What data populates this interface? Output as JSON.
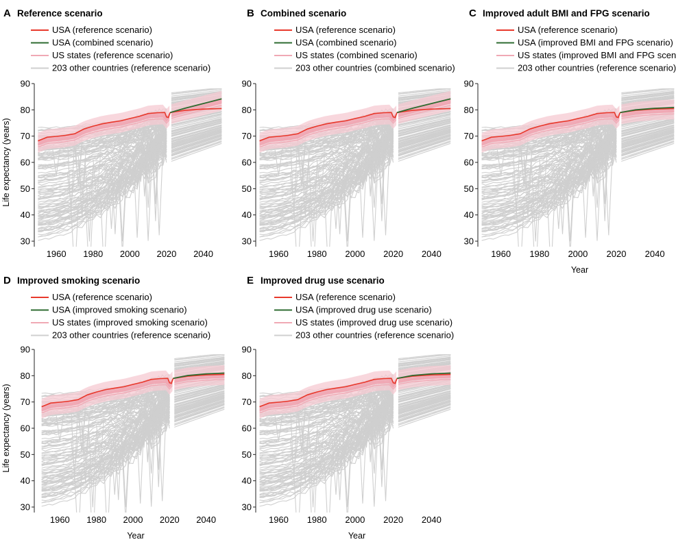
{
  "figure": {
    "y_axis_label": "Life expectancy (years)",
    "x_axis_label": "Year",
    "colors": {
      "usa_reference": "#e8382b",
      "usa_scenario": "#2e6b30",
      "us_states": "#f0a8b4",
      "us_states_band": "#f6c9d1",
      "other_countries": "#cfcfcf"
    }
  },
  "chart_data": [
    {
      "type": "line",
      "letter": "A",
      "title": "Reference scenario",
      "legend": [
        "USA (reference scenario)",
        "USA (combined scenario)",
        "US states (reference scenario)",
        "203 other countries (reference scenario)"
      ],
      "xlabel": "",
      "ylabel": "Life expectancy (years)",
      "xlim": [
        1948,
        2051
      ],
      "ylim": [
        28,
        90
      ],
      "xticks": [
        1960,
        1980,
        2000,
        2020,
        2040
      ],
      "yticks": [
        30,
        40,
        50,
        60,
        70,
        80,
        90
      ],
      "scenario_end": 84.2,
      "series": [
        {
          "name": "USA (reference scenario)",
          "x": [
            1950,
            1955,
            1960,
            1965,
            1970,
            1975,
            1980,
            1985,
            1990,
            1995,
            2000,
            2005,
            2010,
            2015,
            2019,
            2020,
            2021,
            2022,
            2030,
            2040,
            2050
          ],
          "values": [
            68.2,
            69.6,
            69.9,
            70.3,
            70.9,
            72.7,
            73.8,
            74.7,
            75.3,
            75.8,
            76.7,
            77.5,
            78.6,
            78.9,
            79.0,
            77.3,
            77.1,
            79.0,
            79.8,
            80.3,
            80.5
          ]
        },
        {
          "name": "USA (combined scenario)",
          "x": [
            2022,
            2030,
            2040,
            2050
          ],
          "values": [
            79.0,
            80.6,
            82.4,
            84.2
          ]
        }
      ]
    },
    {
      "type": "line",
      "letter": "B",
      "title": "Combined scenario",
      "legend": [
        "USA (reference scenario)",
        "USA (combined scenario)",
        "US states (combined scenario)",
        "203 other countries (combined scenario)"
      ],
      "xlabel": "",
      "ylabel": "",
      "xlim": [
        1948,
        2051
      ],
      "ylim": [
        28,
        90
      ],
      "xticks": [
        1960,
        1980,
        2000,
        2020,
        2040
      ],
      "yticks": [
        30,
        40,
        50,
        60,
        70,
        80,
        90
      ],
      "scenario_end": 84.2,
      "series": [
        {
          "name": "USA (reference scenario)",
          "x": [
            1950,
            1955,
            1960,
            1965,
            1970,
            1975,
            1980,
            1985,
            1990,
            1995,
            2000,
            2005,
            2010,
            2015,
            2019,
            2020,
            2021,
            2022,
            2030,
            2040,
            2050
          ],
          "values": [
            68.2,
            69.6,
            69.9,
            70.3,
            70.9,
            72.7,
            73.8,
            74.7,
            75.3,
            75.8,
            76.7,
            77.5,
            78.6,
            78.9,
            79.0,
            77.3,
            77.1,
            79.0,
            79.8,
            80.3,
            80.5
          ]
        },
        {
          "name": "USA (combined scenario)",
          "x": [
            2022,
            2030,
            2040,
            2050
          ],
          "values": [
            79.0,
            80.6,
            82.4,
            84.2
          ]
        }
      ]
    },
    {
      "type": "line",
      "letter": "C",
      "title": "Improved adult BMI and FPG scenario",
      "legend": [
        "USA (reference scenario)",
        "USA (improved BMI and FPG scenario)",
        "US states (improved BMI and FPG scenario)",
        "203 other countries (reference scenario)"
      ],
      "xlabel": "Year",
      "ylabel": "",
      "xlim": [
        1948,
        2051
      ],
      "ylim": [
        28,
        90
      ],
      "xticks": [
        1960,
        1980,
        2000,
        2020,
        2040
      ],
      "yticks": [
        30,
        40,
        50,
        60,
        70,
        80,
        90
      ],
      "scenario_end": 80.9,
      "series": [
        {
          "name": "USA (reference scenario)",
          "x": [
            1950,
            1955,
            1960,
            1965,
            1970,
            1975,
            1980,
            1985,
            1990,
            1995,
            2000,
            2005,
            2010,
            2015,
            2019,
            2020,
            2021,
            2022,
            2030,
            2040,
            2050
          ],
          "values": [
            68.2,
            69.6,
            69.9,
            70.3,
            70.9,
            72.7,
            73.8,
            74.7,
            75.3,
            75.8,
            76.7,
            77.5,
            78.6,
            78.9,
            79.0,
            77.3,
            77.1,
            79.0,
            79.8,
            80.3,
            80.5
          ]
        },
        {
          "name": "USA (improved BMI and FPG scenario)",
          "x": [
            2022,
            2030,
            2040,
            2050
          ],
          "values": [
            79.0,
            80.0,
            80.6,
            80.9
          ]
        }
      ]
    },
    {
      "type": "line",
      "letter": "D",
      "title": "Improved smoking scenario",
      "legend": [
        "USA (reference scenario)",
        "USA (improved smoking scenario)",
        "US states (improved smoking scenario)",
        "203 other countries (reference scenario)"
      ],
      "xlabel": "Year",
      "ylabel": "Life expectancy (years)",
      "xlim": [
        1946,
        2054
      ],
      "ylim": [
        28,
        90
      ],
      "xticks": [
        1960,
        1980,
        2000,
        2020,
        2040
      ],
      "yticks": [
        30,
        40,
        50,
        60,
        70,
        80,
        90
      ],
      "scenario_end": 81.0,
      "series": [
        {
          "name": "USA (reference scenario)",
          "x": [
            1950,
            1955,
            1960,
            1965,
            1970,
            1975,
            1980,
            1985,
            1990,
            1995,
            2000,
            2005,
            2010,
            2015,
            2019,
            2020,
            2021,
            2022,
            2030,
            2040,
            2050
          ],
          "values": [
            68.2,
            69.6,
            69.9,
            70.3,
            70.9,
            72.7,
            73.8,
            74.7,
            75.3,
            75.8,
            76.7,
            77.5,
            78.6,
            78.9,
            79.0,
            77.3,
            77.1,
            79.0,
            79.8,
            80.3,
            80.5
          ]
        },
        {
          "name": "USA (improved smoking scenario)",
          "x": [
            2022,
            2030,
            2040,
            2050
          ],
          "values": [
            79.0,
            80.1,
            80.7,
            81.0
          ]
        }
      ]
    },
    {
      "type": "line",
      "letter": "E",
      "title": "Improved drug use scenario",
      "legend": [
        "USA (reference scenario)",
        "USA (improved drug use scenario)",
        "US states (improved drug use scenario)",
        "203 other countries (reference scenario)"
      ],
      "xlabel": "Year",
      "ylabel": "",
      "xlim": [
        1948,
        2051
      ],
      "ylim": [
        28,
        90
      ],
      "xticks": [
        1960,
        1980,
        2000,
        2020,
        2040
      ],
      "yticks": [
        30,
        40,
        50,
        60,
        70,
        80,
        90
      ],
      "scenario_end": 81.0,
      "series": [
        {
          "name": "USA (reference scenario)",
          "x": [
            1950,
            1955,
            1960,
            1965,
            1970,
            1975,
            1980,
            1985,
            1990,
            1995,
            2000,
            2005,
            2010,
            2015,
            2019,
            2020,
            2021,
            2022,
            2030,
            2040,
            2050
          ],
          "values": [
            68.2,
            69.6,
            69.9,
            70.3,
            70.9,
            72.7,
            73.8,
            74.7,
            75.3,
            75.8,
            76.7,
            77.5,
            78.6,
            78.9,
            79.0,
            77.3,
            77.1,
            79.0,
            79.8,
            80.3,
            80.5
          ]
        },
        {
          "name": "USA (improved drug use scenario)",
          "x": [
            2022,
            2030,
            2040,
            2050
          ],
          "values": [
            79.0,
            80.1,
            80.7,
            81.0
          ]
        }
      ]
    }
  ]
}
